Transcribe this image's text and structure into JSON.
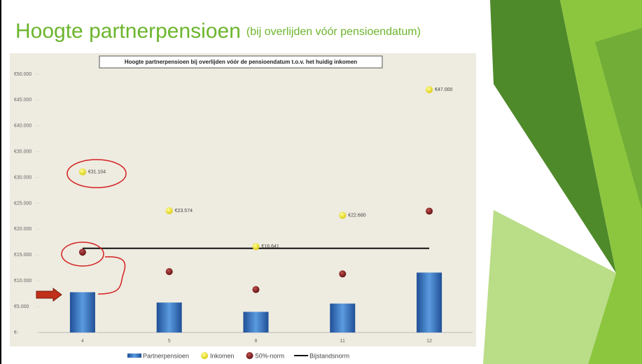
{
  "slide": {
    "title": "Hoogte partnerpensioen",
    "subtitle": "(bij overlijden vóór pensioendatum)"
  },
  "chart_data": {
    "type": "combo",
    "title": "Hoogte partnerpensioen bij overlijden vóór de pensioendatum t.o.v. het huidig inkomen",
    "categories": [
      "4",
      "5",
      "8",
      "11",
      "12"
    ],
    "series": [
      {
        "name": "Partnerpensioen",
        "type": "bar",
        "color": "#3a78c8",
        "values": [
          7800,
          5800,
          4000,
          5600,
          11600
        ]
      },
      {
        "name": "Inkomen",
        "type": "scatter",
        "color": "#f2e600",
        "values": [
          31104,
          23574,
          16641,
          22680,
          47000
        ],
        "value_labels": [
          "€31.104",
          "€23.574",
          "€16.641",
          "€22.680",
          "€47.000"
        ]
      },
      {
        "name": "50%-norm",
        "type": "scatter",
        "color": "#8b1a1a",
        "values": [
          15552,
          11787,
          8320,
          11340,
          23500
        ]
      },
      {
        "name": "Bijstandsnorm",
        "type": "line",
        "color": "#111111",
        "values": [
          16300,
          16300,
          16300,
          16300,
          16300
        ]
      }
    ],
    "ylim": [
      0,
      50000
    ],
    "yticks": [
      {
        "value": 0,
        "label": "€-"
      },
      {
        "value": 5000,
        "label": "€5.000"
      },
      {
        "value": 10000,
        "label": "€10.000"
      },
      {
        "value": 15000,
        "label": "€15.000"
      },
      {
        "value": 20000,
        "label": "€20.000"
      },
      {
        "value": 25000,
        "label": "€25.000"
      },
      {
        "value": 30000,
        "label": "€30.000"
      },
      {
        "value": 35000,
        "label": "€35.000"
      },
      {
        "value": 40000,
        "label": "€40.000"
      },
      {
        "value": 45000,
        "label": "€45.000"
      },
      {
        "value": 50000,
        "label": "€50.000"
      }
    ]
  }
}
